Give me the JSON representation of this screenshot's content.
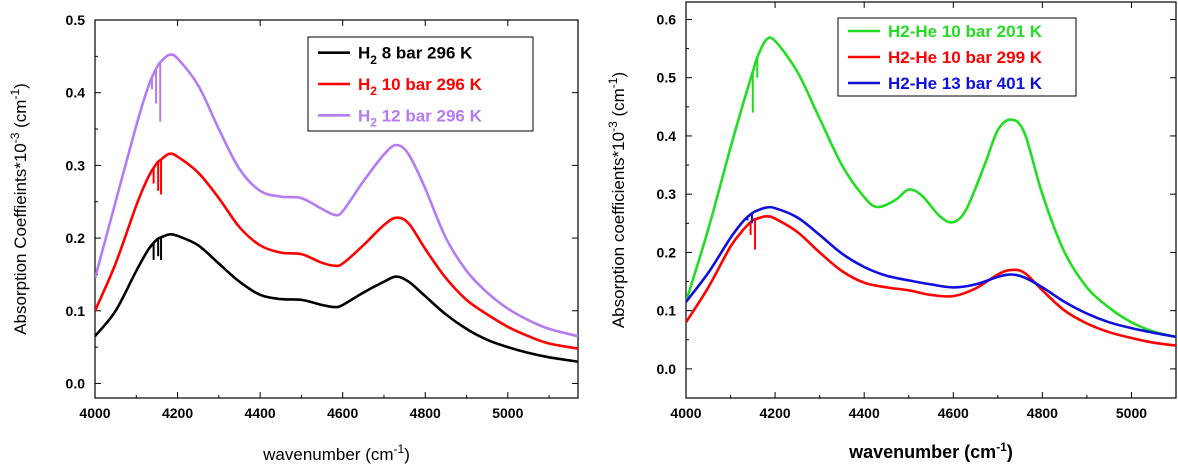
{
  "chart_data": [
    {
      "type": "line",
      "xlabel": "wavenumber (cm<sup>-1</sup>)",
      "ylabel": "Absorption Coeffieints*10<sup>-3</sup> (cm<sup>-1</sup>)",
      "xlim": [
        4000,
        5170
      ],
      "ylim": [
        -0.02,
        0.5
      ],
      "xticks": [
        "4000",
        "4200",
        "4400",
        "4600",
        "4800",
        "5000"
      ],
      "yticks": [
        "0.0",
        "0.1",
        "0.2",
        "0.3",
        "0.4",
        "0.5"
      ],
      "legend_position": "top-right",
      "series": [
        {
          "name": "H<sub>2</sub> 8 bar 296 K",
          "color": "#000000",
          "x": [
            4000,
            4050,
            4100,
            4130,
            4150,
            4160,
            4180,
            4200,
            4250,
            4300,
            4350,
            4400,
            4450,
            4500,
            4550,
            4580,
            4600,
            4650,
            4700,
            4730,
            4760,
            4800,
            4850,
            4900,
            4950,
            5000,
            5050,
            5100,
            5170
          ],
          "y": [
            0.065,
            0.1,
            0.155,
            0.185,
            0.198,
            0.201,
            0.205,
            0.203,
            0.19,
            0.165,
            0.14,
            0.122,
            0.116,
            0.115,
            0.108,
            0.105,
            0.108,
            0.125,
            0.14,
            0.147,
            0.14,
            0.12,
            0.095,
            0.075,
            0.06,
            0.05,
            0.042,
            0.036,
            0.03
          ],
          "dips": [
            [
              4142,
              0.17
            ],
            [
              4153,
              0.175
            ],
            [
              4160,
              0.17
            ]
          ]
        },
        {
          "name": "H<sub>2</sub> 10 bar 296 K",
          "color": "#ff0000",
          "x": [
            4000,
            4050,
            4100,
            4130,
            4150,
            4160,
            4180,
            4200,
            4250,
            4300,
            4350,
            4400,
            4450,
            4500,
            4550,
            4580,
            4600,
            4650,
            4700,
            4730,
            4760,
            4800,
            4850,
            4900,
            4950,
            5000,
            5050,
            5100,
            5170
          ],
          "y": [
            0.1,
            0.165,
            0.245,
            0.285,
            0.303,
            0.308,
            0.316,
            0.312,
            0.29,
            0.255,
            0.215,
            0.19,
            0.18,
            0.178,
            0.166,
            0.162,
            0.165,
            0.19,
            0.218,
            0.228,
            0.22,
            0.185,
            0.145,
            0.115,
            0.095,
            0.078,
            0.065,
            0.055,
            0.048
          ],
          "dips": [
            [
              4142,
              0.275
            ],
            [
              4153,
              0.265
            ],
            [
              4160,
              0.26
            ]
          ]
        },
        {
          "name": "H<sub>2</sub> 12 bar 296 K",
          "color": "#b57bf2",
          "x": [
            4000,
            4050,
            4100,
            4130,
            4150,
            4160,
            4180,
            4200,
            4250,
            4300,
            4350,
            4400,
            4450,
            4500,
            4550,
            4580,
            4600,
            4650,
            4700,
            4730,
            4760,
            4800,
            4850,
            4900,
            4950,
            5000,
            5050,
            5100,
            5170
          ],
          "y": [
            0.145,
            0.25,
            0.355,
            0.41,
            0.435,
            0.443,
            0.452,
            0.447,
            0.41,
            0.35,
            0.295,
            0.265,
            0.257,
            0.255,
            0.24,
            0.232,
            0.237,
            0.278,
            0.315,
            0.328,
            0.315,
            0.268,
            0.2,
            0.155,
            0.125,
            0.103,
            0.087,
            0.075,
            0.065
          ],
          "dips": [
            [
              4138,
              0.405
            ],
            [
              4148,
              0.385
            ],
            [
              4158,
              0.36
            ]
          ]
        }
      ]
    },
    {
      "type": "line",
      "xlabel": "wavenumber (cm<sup>-1</sup>)",
      "ylabel": "Absorption coefficients*10<sup>-3</sup> (cm<sup>-1</sup>)",
      "xlim": [
        4000,
        5100
      ],
      "ylim": [
        -0.05,
        0.63
      ],
      "xticks": [
        "4000",
        "4200",
        "4400",
        "4600",
        "4800",
        "5000"
      ],
      "yticks": [
        "0.0",
        "0.1",
        "0.2",
        "0.3",
        "0.4",
        "0.5",
        "0.6"
      ],
      "legend_position": "top-right",
      "series": [
        {
          "name": "H2-He 10 bar 201 K",
          "color": "#22dd22",
          "x": [
            4000,
            4050,
            4100,
            4130,
            4150,
            4160,
            4180,
            4200,
            4250,
            4300,
            4350,
            4400,
            4430,
            4470,
            4500,
            4530,
            4570,
            4600,
            4630,
            4670,
            4700,
            4730,
            4760,
            4800,
            4850,
            4900,
            4950,
            5000,
            5050,
            5100
          ],
          "y": [
            0.115,
            0.24,
            0.38,
            0.46,
            0.51,
            0.535,
            0.565,
            0.563,
            0.51,
            0.43,
            0.35,
            0.295,
            0.278,
            0.29,
            0.308,
            0.297,
            0.262,
            0.252,
            0.275,
            0.35,
            0.41,
            0.428,
            0.405,
            0.3,
            0.2,
            0.14,
            0.105,
            0.08,
            0.064,
            0.055
          ],
          "dips": [
            [
              4150,
              0.44
            ],
            [
              4160,
              0.5
            ]
          ]
        },
        {
          "name": "H2-He 10 bar 299 K",
          "color": "#ff0000",
          "x": [
            4000,
            4050,
            4100,
            4130,
            4150,
            4160,
            4180,
            4200,
            4250,
            4300,
            4350,
            4400,
            4450,
            4500,
            4550,
            4600,
            4650,
            4700,
            4730,
            4760,
            4800,
            4850,
            4900,
            4950,
            5000,
            5050,
            5100
          ],
          "y": [
            0.08,
            0.14,
            0.21,
            0.24,
            0.255,
            0.258,
            0.262,
            0.258,
            0.235,
            0.2,
            0.168,
            0.148,
            0.14,
            0.135,
            0.127,
            0.125,
            0.138,
            0.162,
            0.17,
            0.165,
            0.135,
            0.1,
            0.078,
            0.063,
            0.053,
            0.045,
            0.04
          ],
          "dips": [
            [
              4145,
              0.23
            ],
            [
              4155,
              0.205
            ]
          ]
        },
        {
          "name": "H2-He 13 bar 401 K",
          "color": "#1010dd",
          "x": [
            4000,
            4050,
            4100,
            4130,
            4150,
            4160,
            4180,
            4200,
            4250,
            4300,
            4350,
            4400,
            4450,
            4500,
            4550,
            4600,
            4650,
            4700,
            4730,
            4760,
            4800,
            4850,
            4900,
            4950,
            5000,
            5050,
            5100
          ],
          "y": [
            0.115,
            0.165,
            0.225,
            0.255,
            0.268,
            0.272,
            0.277,
            0.276,
            0.26,
            0.23,
            0.198,
            0.175,
            0.16,
            0.152,
            0.145,
            0.14,
            0.145,
            0.158,
            0.162,
            0.157,
            0.14,
            0.115,
            0.095,
            0.08,
            0.07,
            0.062,
            0.055
          ],
          "dips": [
            [
              4138,
              0.255
            ],
            [
              4148,
              0.25
            ]
          ]
        }
      ]
    }
  ]
}
